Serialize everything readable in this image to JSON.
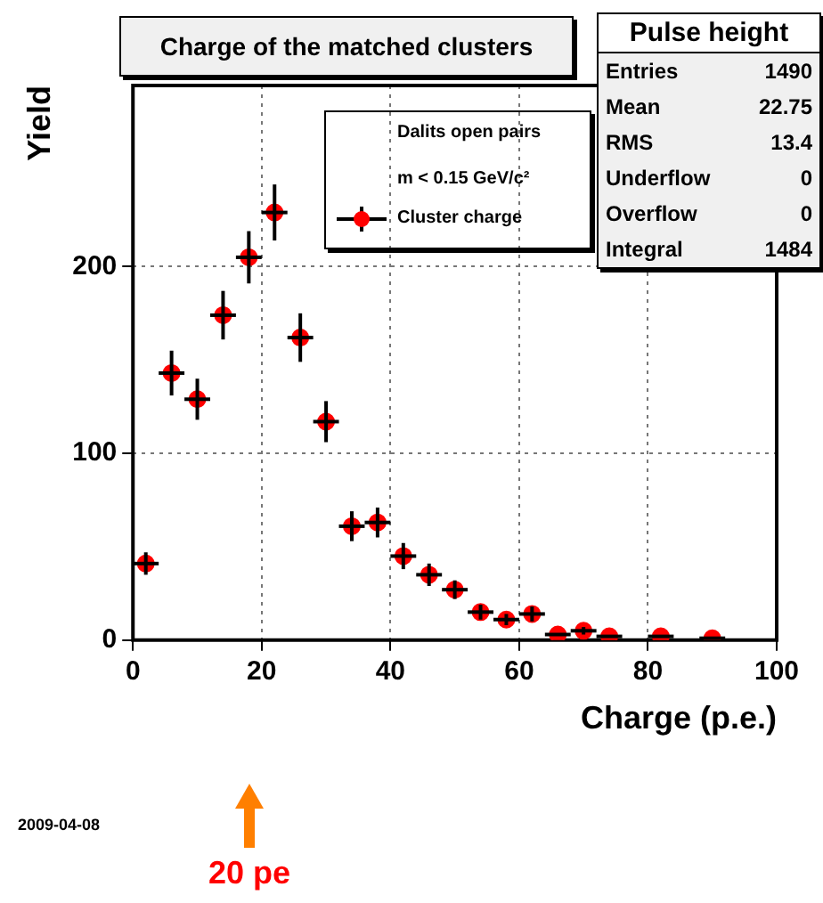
{
  "chart_data": {
    "type": "scatter",
    "title": "Charge of the matched clusters",
    "xlabel": "Charge (p.e.)",
    "ylabel": "Yield",
    "legend_title": "Dalits open pairs",
    "legend": "top right",
    "marker": "circle",
    "grid": true,
    "x": [
      2,
      6,
      10,
      14,
      18,
      22,
      26,
      30,
      34,
      38,
      42,
      46,
      50,
      54,
      58,
      62,
      66,
      70,
      74,
      82,
      90
    ],
    "series": [
      {
        "name": "Cluster charge",
        "color": "#ff0000",
        "values": [
          41,
          143,
          129,
          174,
          205,
          229,
          162,
          117,
          61,
          63,
          45,
          35,
          27,
          15,
          11,
          14,
          3,
          5,
          2,
          2,
          1
        ],
        "errors": [
          6,
          12,
          11,
          13,
          14,
          15,
          13,
          11,
          8,
          8,
          7,
          6,
          5,
          4,
          3,
          4,
          null,
          2,
          null,
          null,
          null
        ],
        "xerrors": [
          2,
          2,
          2,
          2,
          2,
          2,
          2,
          2,
          2,
          2,
          2,
          2,
          2,
          2,
          2,
          2,
          2,
          2,
          2,
          2,
          2
        ]
      }
    ],
    "xlim": [
      0,
      100
    ],
    "xticks": [
      0,
      20,
      40,
      60,
      80,
      100
    ],
    "ylim": [
      0,
      297
    ],
    "yticks": [
      0,
      100,
      200
    ],
    "annotations": [
      "m < 0.15 GeV/c²",
      "Pulse height",
      "Entries",
      "1490",
      "Mean",
      "22.75",
      "RMS",
      "13.4",
      "Underflow",
      "0",
      "Overflow",
      "0",
      "Integral",
      "1484",
      "2009-04-08",
      "20 pe"
    ]
  }
}
